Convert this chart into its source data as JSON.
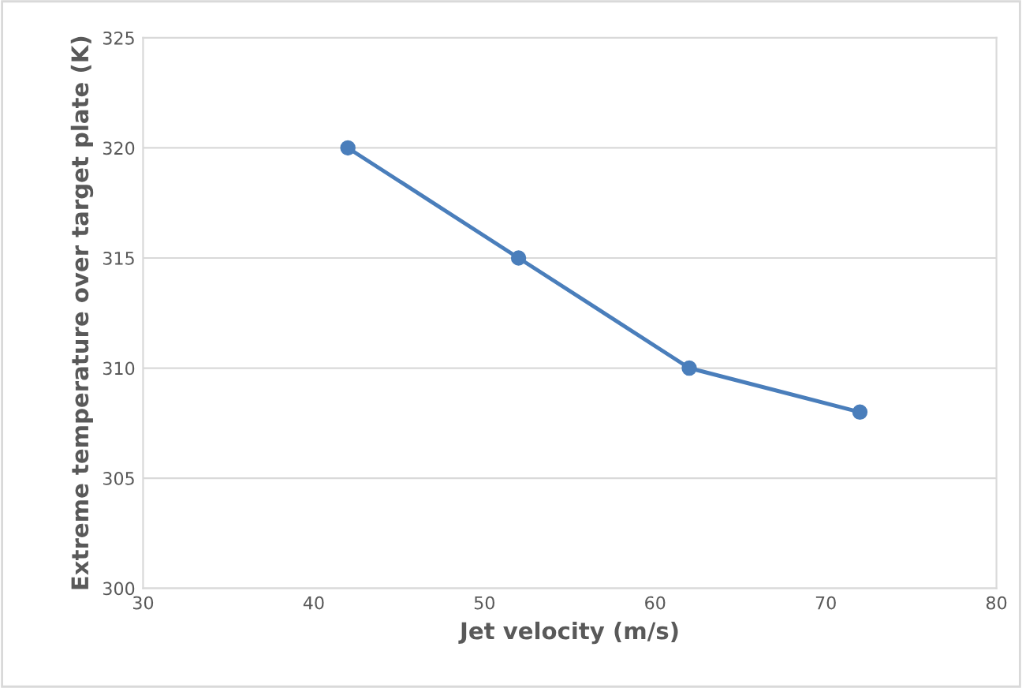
{
  "chart_data": {
    "type": "line",
    "xlabel": "Jet velocity (m/s)",
    "ylabel": "Extreme temperature over target plate (K)",
    "x": [
      42,
      52,
      62,
      72
    ],
    "series": [
      {
        "color": "#4a7ebb",
        "values": [
          320,
          315,
          310,
          308
        ]
      }
    ],
    "xlim": [
      30,
      80
    ],
    "xticks": [
      30,
      40,
      50,
      60,
      70,
      80
    ],
    "ylim": [
      300,
      325
    ],
    "yticks": [
      300,
      305,
      310,
      315,
      320,
      325
    ],
    "grid": "y",
    "marker": "circle",
    "line_style": "solid"
  }
}
